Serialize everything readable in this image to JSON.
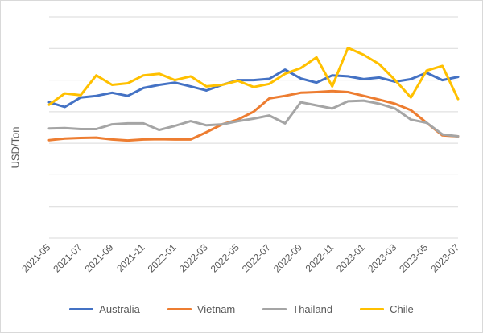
{
  "chart_data": {
    "type": "line",
    "title": "",
    "xlabel": "",
    "ylabel": "USD/Ton",
    "ylim": [
      0,
      7
    ],
    "y_gridlines": 7,
    "y_tick_labels_shown": false,
    "grid": "horizontal",
    "legend_position": "bottom",
    "x": [
      "2021-05",
      "2021-06",
      "2021-07",
      "2021-08",
      "2021-09",
      "2021-10",
      "2021-11",
      "2021-12",
      "2022-01",
      "2022-02",
      "2022-03",
      "2022-04",
      "2022-05",
      "2022-06",
      "2022-07",
      "2022-08",
      "2022-09",
      "2022-10",
      "2022-11",
      "2022-12",
      "2023-01",
      "2023-02",
      "2023-03",
      "2023-04",
      "2023-05",
      "2023-06",
      "2023-07"
    ],
    "x_tick_labels": [
      "2021-05",
      "2021-07",
      "2021-09",
      "2021-11",
      "2022-01",
      "2022-03",
      "2022-05",
      "2022-07",
      "2022-09",
      "2022-11",
      "2023-01",
      "2023-03",
      "2023-05",
      "2023-07"
    ],
    "series": [
      {
        "name": "Australia",
        "color": "#4472c4",
        "values": [
          4.3,
          4.15,
          4.45,
          4.5,
          4.6,
          4.5,
          4.75,
          4.85,
          4.92,
          4.8,
          4.67,
          4.85,
          5.0,
          5.0,
          5.04,
          5.33,
          5.05,
          4.92,
          5.15,
          5.12,
          5.03,
          5.08,
          4.95,
          5.03,
          5.23,
          5.0,
          5.1
        ]
      },
      {
        "name": "Vietnam",
        "color": "#ed7d31",
        "values": [
          3.1,
          3.15,
          3.17,
          3.18,
          3.12,
          3.09,
          3.12,
          3.13,
          3.12,
          3.12,
          3.35,
          3.6,
          3.75,
          4.0,
          4.42,
          4.5,
          4.6,
          4.62,
          4.65,
          4.62,
          4.5,
          4.38,
          4.25,
          4.05,
          3.65,
          3.25,
          3.22
        ]
      },
      {
        "name": "Thailand",
        "color": "#a5a5a5",
        "values": [
          3.47,
          3.48,
          3.45,
          3.45,
          3.6,
          3.63,
          3.63,
          3.42,
          3.55,
          3.7,
          3.57,
          3.6,
          3.7,
          3.78,
          3.88,
          3.63,
          4.3,
          4.2,
          4.1,
          4.33,
          4.35,
          4.25,
          4.1,
          3.75,
          3.65,
          3.28,
          3.22
        ]
      },
      {
        "name": "Chile",
        "color": "#ffc000",
        "values": [
          4.22,
          4.58,
          4.52,
          5.15,
          4.85,
          4.9,
          5.15,
          5.2,
          5.0,
          5.12,
          4.8,
          4.85,
          4.98,
          4.78,
          4.88,
          5.2,
          5.38,
          5.72,
          4.8,
          6.02,
          5.8,
          5.5,
          5.0,
          4.45,
          5.3,
          5.45,
          4.4
        ]
      }
    ]
  }
}
